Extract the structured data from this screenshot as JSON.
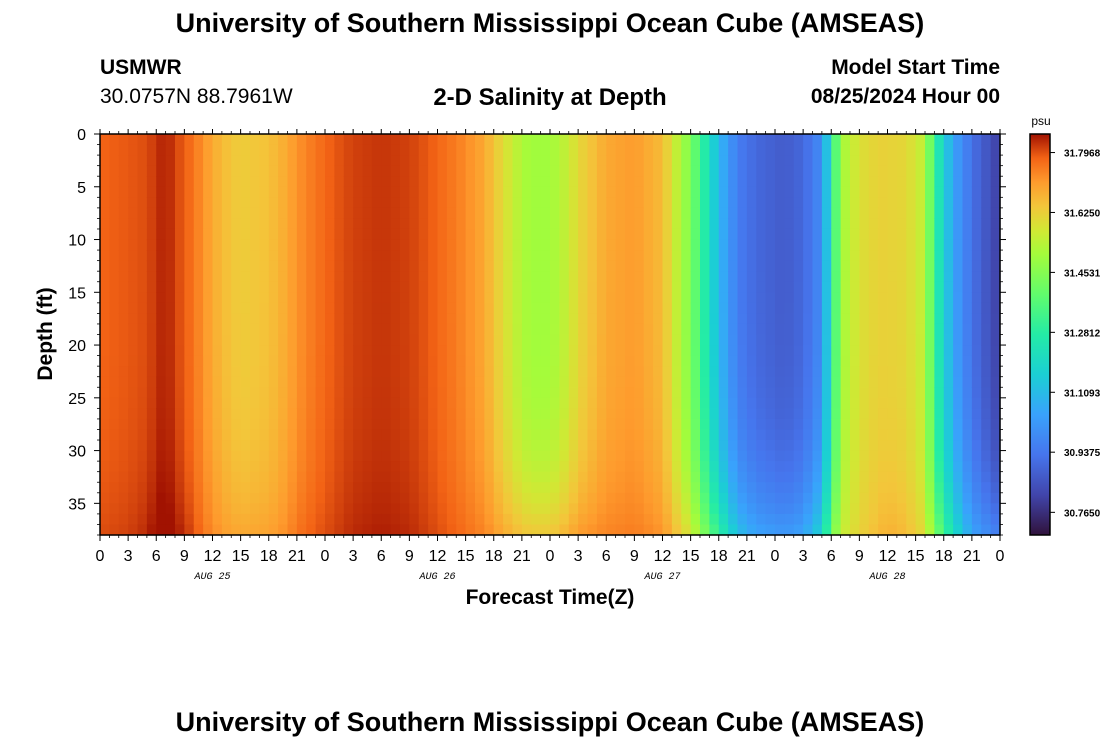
{
  "page": {
    "title": "University of Southern Mississippi Ocean Cube (AMSEAS)",
    "title_repeat": "University of Southern Mississippi Ocean Cube (AMSEAS)",
    "station_name": "USMWR",
    "station_coords": "30.0757N  88.7961W",
    "plot_title": "2-D Salinity at Depth",
    "model_start_label": "Model Start Time",
    "model_start_value": "08/25/2024 Hour 00"
  },
  "chart_data": {
    "type": "heatmap",
    "title": "2-D Salinity at Depth",
    "xlabel": "Forecast Time(Z)",
    "ylabel": "Depth (ft)",
    "x_unit": "forecast hour",
    "xlim": [
      0,
      96
    ],
    "ylim": [
      38,
      0
    ],
    "x_ticks": [
      0,
      3,
      6,
      9,
      12,
      15,
      18,
      21,
      24,
      27,
      30,
      33,
      36,
      39,
      42,
      45,
      48,
      51,
      54,
      57,
      60,
      63,
      66,
      69,
      72,
      75,
      78,
      81,
      84,
      87,
      90,
      93,
      96
    ],
    "x_tick_labels": [
      "0",
      "3",
      "6",
      "9",
      "12",
      "15",
      "18",
      "21",
      "0",
      "3",
      "6",
      "9",
      "12",
      "15",
      "18",
      "21",
      "0",
      "3",
      "6",
      "9",
      "12",
      "15",
      "18",
      "21",
      "0",
      "3",
      "6",
      "9",
      "12",
      "15",
      "18",
      "21",
      "0"
    ],
    "y_ticks": [
      0,
      5,
      10,
      15,
      20,
      25,
      30,
      35
    ],
    "y_tick_labels": [
      "0",
      "5",
      "10",
      "15",
      "20",
      "25",
      "30",
      "35"
    ],
    "date_labels": [
      {
        "text": "AUG 25",
        "hour": 12
      },
      {
        "text": "AUG 26",
        "hour": 36
      },
      {
        "text": "AUG 27",
        "hour": 60
      },
      {
        "text": "AUG 28",
        "hour": 84
      }
    ],
    "colorbar": {
      "unit": "psu",
      "min": 30.7,
      "max": 31.85,
      "ticks": [
        31.7968,
        31.625,
        31.4531,
        31.2812,
        31.1093,
        30.9375,
        30.765
      ],
      "tick_labels": [
        "31.7968",
        "31.6250",
        "31.4531",
        "31.2812",
        "31.1093",
        "30.9375",
        "30.7650"
      ]
    },
    "salinity_profile_by_hour": {
      "hours": [
        0,
        3,
        5,
        6,
        7,
        8,
        10,
        11,
        13,
        15,
        18,
        20,
        21,
        23,
        25,
        27,
        30,
        33,
        35,
        38,
        41,
        43,
        45,
        46,
        48,
        50,
        51,
        54,
        57,
        60,
        63,
        66,
        68,
        70,
        73,
        75,
        77,
        78,
        79,
        81,
        83,
        84,
        86,
        88,
        89,
        91,
        93,
        96
      ],
      "surface": [
        31.78,
        31.79,
        31.8,
        31.82,
        31.84,
        31.81,
        31.76,
        31.72,
        31.66,
        31.63,
        31.65,
        31.69,
        31.72,
        31.76,
        31.79,
        31.81,
        31.82,
        31.81,
        31.79,
        31.75,
        31.69,
        31.6,
        31.52,
        31.5,
        31.5,
        31.56,
        31.61,
        31.69,
        31.71,
        31.66,
        31.44,
        31.1,
        30.95,
        30.9,
        30.87,
        30.9,
        30.99,
        31.25,
        31.5,
        31.59,
        31.62,
        31.62,
        31.61,
        31.54,
        31.3,
        31.05,
        30.92,
        30.8
      ],
      "bottom": [
        31.8,
        31.81,
        31.83,
        31.86,
        31.87,
        31.85,
        31.8,
        31.76,
        31.71,
        31.69,
        31.7,
        31.73,
        31.76,
        31.79,
        31.81,
        31.83,
        31.84,
        31.83,
        31.81,
        31.78,
        31.74,
        31.69,
        31.65,
        31.64,
        31.64,
        31.68,
        31.71,
        31.74,
        31.75,
        31.72,
        31.58,
        31.3,
        31.12,
        31.05,
        31.02,
        31.05,
        31.18,
        31.4,
        31.55,
        31.62,
        31.66,
        31.68,
        31.66,
        31.6,
        31.45,
        31.22,
        31.05,
        30.95
      ]
    }
  }
}
